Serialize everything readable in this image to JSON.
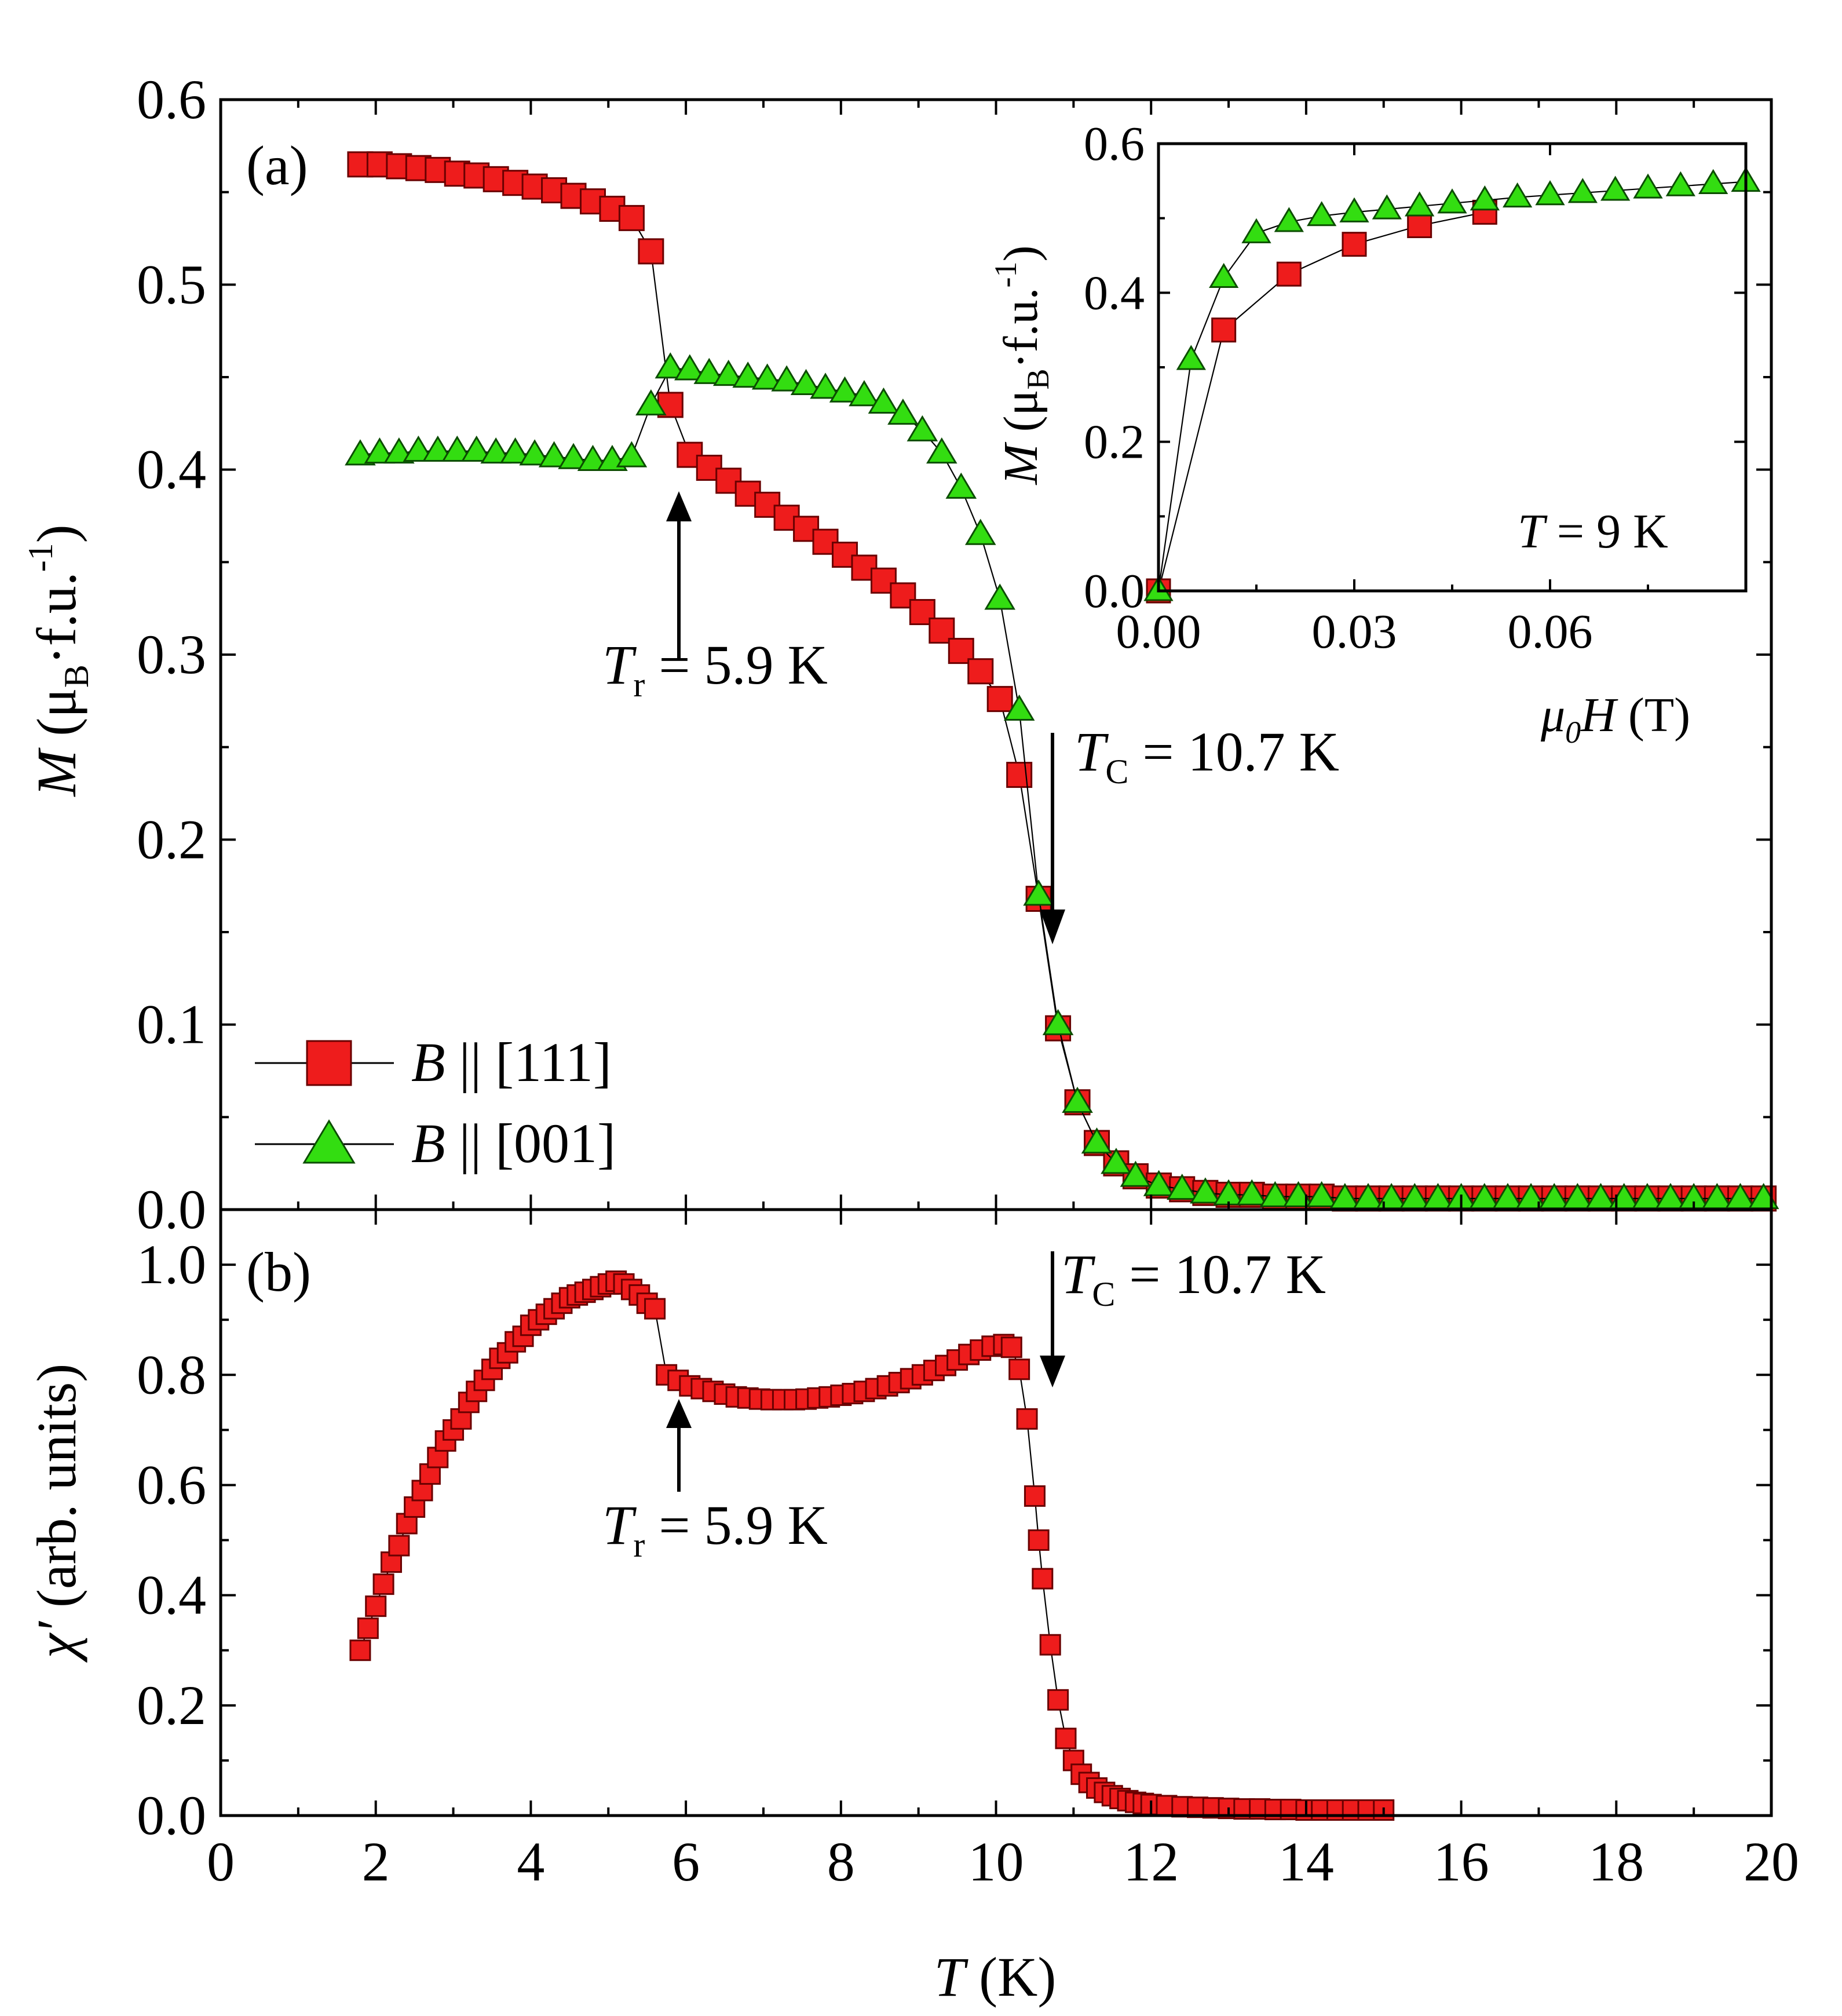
{
  "panel_a": {
    "label": "(a)",
    "ylabel": "M (μB·f.u.-1)",
    "yticks": [
      "0.0",
      "0.1",
      "0.2",
      "0.3",
      "0.4",
      "0.5",
      "0.6"
    ],
    "annotations": {
      "tr": "Tr = 5.9 K",
      "tc": "TC = 10.7 K"
    },
    "legend": [
      {
        "label": "B || [111]",
        "marker": "square"
      },
      {
        "label": "B || [001]",
        "marker": "triangle"
      }
    ],
    "inset": {
      "ylabel": "M (μB·f.u.-1)",
      "xlabel": "μ0H (T)",
      "xticks": [
        "0.00",
        "0.03",
        "0.06"
      ],
      "yticks": [
        "0.0",
        "0.2",
        "0.4",
        "0.6"
      ],
      "annotation": "T = 9 K"
    }
  },
  "panel_b": {
    "label": "(b)",
    "ylabel": "χ′ (arb. units)",
    "yticks": [
      "0.0",
      "0.2",
      "0.4",
      "0.6",
      "0.8",
      "1.0"
    ],
    "annotations": {
      "tr": "Tr = 5.9 K",
      "tc": "TC = 10.7 K"
    }
  },
  "shared_x": {
    "xlabel": "T (K)",
    "xticks": [
      "0",
      "2",
      "4",
      "6",
      "8",
      "10",
      "12",
      "14",
      "16",
      "18",
      "20"
    ]
  },
  "colors": {
    "square_fill": "#ee1c1c",
    "triangle_fill": "#33dd11"
  },
  "chart_data": [
    {
      "type": "scatter",
      "panel": "a",
      "xlabel": "T (K)",
      "ylabel": "M (μB·f.u.-1)",
      "xlim": [
        0,
        20
      ],
      "ylim": [
        0,
        0.6
      ],
      "legend_position": "bottom-left",
      "series": [
        {
          "name": "B || [111]",
          "marker": "square",
          "x": [
            1.8,
            2.05,
            2.3,
            2.55,
            2.8,
            3.05,
            3.3,
            3.55,
            3.8,
            4.05,
            4.3,
            4.55,
            4.8,
            5.05,
            5.3,
            5.55,
            5.8,
            6.05,
            6.3,
            6.55,
            6.8,
            7.05,
            7.3,
            7.55,
            7.8,
            8.05,
            8.3,
            8.55,
            8.8,
            9.05,
            9.3,
            9.55,
            9.8,
            10.05,
            10.3,
            10.55,
            10.8,
            11.05,
            11.3,
            11.55,
            11.8,
            12.1,
            12.4,
            12.7,
            13.0,
            13.3,
            13.6,
            13.9,
            14.2,
            14.5,
            14.8,
            15.1,
            15.4,
            15.7,
            16.0,
            16.3,
            16.6,
            16.9,
            17.2,
            17.5,
            17.8,
            18.1,
            18.4,
            18.7,
            19.0,
            19.3,
            19.6,
            19.9
          ],
          "y": [
            0.565,
            0.565,
            0.564,
            0.563,
            0.562,
            0.56,
            0.559,
            0.557,
            0.555,
            0.553,
            0.551,
            0.548,
            0.545,
            0.541,
            0.536,
            0.518,
            0.435,
            0.408,
            0.401,
            0.394,
            0.387,
            0.381,
            0.374,
            0.368,
            0.361,
            0.354,
            0.347,
            0.34,
            0.332,
            0.323,
            0.313,
            0.302,
            0.291,
            0.276,
            0.235,
            0.168,
            0.098,
            0.058,
            0.036,
            0.025,
            0.018,
            0.013,
            0.011,
            0.009,
            0.008,
            0.008,
            0.007,
            0.007,
            0.007,
            0.006,
            0.006,
            0.006,
            0.006,
            0.006,
            0.006,
            0.006,
            0.006,
            0.006,
            0.006,
            0.006,
            0.006,
            0.006,
            0.006,
            0.006,
            0.006,
            0.006,
            0.006,
            0.006
          ]
        },
        {
          "name": "B || [001]",
          "marker": "triangle",
          "x": [
            1.8,
            2.05,
            2.3,
            2.55,
            2.8,
            3.05,
            3.3,
            3.55,
            3.8,
            4.05,
            4.3,
            4.55,
            4.8,
            5.05,
            5.3,
            5.55,
            5.8,
            6.05,
            6.3,
            6.55,
            6.8,
            7.05,
            7.3,
            7.55,
            7.8,
            8.05,
            8.3,
            8.55,
            8.8,
            9.05,
            9.3,
            9.55,
            9.8,
            10.05,
            10.3,
            10.55,
            10.8,
            11.05,
            11.3,
            11.55,
            11.8,
            12.1,
            12.4,
            12.7,
            13.0,
            13.3,
            13.6,
            13.9,
            14.2,
            14.5,
            14.8,
            15.1,
            15.4,
            15.7,
            16.0,
            16.3,
            16.6,
            16.9,
            17.2,
            17.5,
            17.8,
            18.1,
            18.4,
            18.7,
            19.0,
            19.3,
            19.6,
            19.9
          ],
          "y": [
            0.408,
            0.409,
            0.409,
            0.41,
            0.41,
            0.41,
            0.41,
            0.409,
            0.409,
            0.408,
            0.407,
            0.406,
            0.405,
            0.405,
            0.407,
            0.435,
            0.455,
            0.454,
            0.452,
            0.451,
            0.45,
            0.449,
            0.448,
            0.446,
            0.444,
            0.442,
            0.44,
            0.436,
            0.43,
            0.421,
            0.409,
            0.39,
            0.365,
            0.33,
            0.27,
            0.17,
            0.1,
            0.058,
            0.036,
            0.025,
            0.018,
            0.013,
            0.011,
            0.009,
            0.008,
            0.008,
            0.007,
            0.007,
            0.007,
            0.006,
            0.006,
            0.006,
            0.006,
            0.006,
            0.006,
            0.006,
            0.006,
            0.006,
            0.006,
            0.006,
            0.006,
            0.006,
            0.006,
            0.006,
            0.006,
            0.006,
            0.006,
            0.006
          ]
        }
      ]
    },
    {
      "type": "scatter",
      "panel": "a-inset",
      "xlabel": "μ0H (T)",
      "ylabel": "M (μB·f.u.-1)",
      "xlim": [
        0,
        0.09
      ],
      "ylim": [
        0,
        0.6
      ],
      "series": [
        {
          "name": "B || [111]",
          "marker": "square",
          "x": [
            0.0,
            0.01,
            0.02,
            0.03,
            0.04,
            0.05
          ],
          "y": [
            0.0,
            0.35,
            0.425,
            0.465,
            0.49,
            0.508
          ]
        },
        {
          "name": "B || [001]",
          "marker": "triangle",
          "x": [
            0.0,
            0.005,
            0.01,
            0.015,
            0.02,
            0.025,
            0.03,
            0.035,
            0.04,
            0.045,
            0.05,
            0.055,
            0.06,
            0.065,
            0.07,
            0.075,
            0.08,
            0.085,
            0.09
          ],
          "y": [
            0.0,
            0.31,
            0.42,
            0.48,
            0.495,
            0.503,
            0.508,
            0.512,
            0.516,
            0.52,
            0.524,
            0.528,
            0.531,
            0.534,
            0.537,
            0.54,
            0.543,
            0.546,
            0.549
          ]
        }
      ]
    },
    {
      "type": "scatter",
      "panel": "b",
      "xlabel": "T (K)",
      "ylabel": "χ′ (arb. units)",
      "xlim": [
        0,
        20
      ],
      "ylim": [
        0,
        1.1
      ],
      "series": [
        {
          "marker": "square",
          "x": [
            1.8,
            1.9,
            2.0,
            2.1,
            2.2,
            2.3,
            2.4,
            2.5,
            2.6,
            2.7,
            2.8,
            2.9,
            3.0,
            3.1,
            3.2,
            3.3,
            3.4,
            3.5,
            3.6,
            3.7,
            3.8,
            3.9,
            4.0,
            4.1,
            4.2,
            4.3,
            4.4,
            4.5,
            4.6,
            4.7,
            4.8,
            4.9,
            5.0,
            5.1,
            5.2,
            5.3,
            5.4,
            5.5,
            5.6,
            5.75,
            5.9,
            6.05,
            6.2,
            6.35,
            6.5,
            6.65,
            6.8,
            6.95,
            7.1,
            7.25,
            7.4,
            7.55,
            7.7,
            7.85,
            8.0,
            8.15,
            8.3,
            8.45,
            8.6,
            8.75,
            8.9,
            9.05,
            9.2,
            9.35,
            9.5,
            9.65,
            9.8,
            9.95,
            10.1,
            10.2,
            10.3,
            10.4,
            10.5,
            10.55,
            10.6,
            10.7,
            10.8,
            10.9,
            11.0,
            11.1,
            11.2,
            11.3,
            11.4,
            11.5,
            11.6,
            11.7,
            11.8,
            11.9,
            12.0,
            12.2,
            12.4,
            12.6,
            12.8,
            13.0,
            13.2,
            13.4,
            13.6,
            13.8,
            14.0,
            14.2,
            14.4,
            14.6,
            14.8,
            15.0
          ],
          "y": [
            0.3,
            0.34,
            0.38,
            0.42,
            0.46,
            0.49,
            0.53,
            0.56,
            0.59,
            0.62,
            0.65,
            0.68,
            0.7,
            0.72,
            0.75,
            0.77,
            0.79,
            0.81,
            0.83,
            0.84,
            0.86,
            0.87,
            0.89,
            0.9,
            0.91,
            0.92,
            0.93,
            0.94,
            0.945,
            0.95,
            0.955,
            0.96,
            0.965,
            0.97,
            0.965,
            0.955,
            0.945,
            0.93,
            0.92,
            0.8,
            0.79,
            0.78,
            0.775,
            0.77,
            0.765,
            0.76,
            0.758,
            0.756,
            0.755,
            0.755,
            0.755,
            0.756,
            0.758,
            0.76,
            0.763,
            0.766,
            0.77,
            0.775,
            0.78,
            0.786,
            0.793,
            0.8,
            0.808,
            0.817,
            0.827,
            0.837,
            0.845,
            0.852,
            0.855,
            0.85,
            0.81,
            0.72,
            0.58,
            0.5,
            0.43,
            0.31,
            0.21,
            0.14,
            0.1,
            0.075,
            0.06,
            0.05,
            0.042,
            0.036,
            0.031,
            0.027,
            0.024,
            0.022,
            0.02,
            0.018,
            0.016,
            0.015,
            0.014,
            0.013,
            0.012,
            0.012,
            0.011,
            0.011,
            0.01,
            0.01,
            0.01,
            0.01,
            0.01,
            0.01
          ]
        }
      ]
    }
  ]
}
